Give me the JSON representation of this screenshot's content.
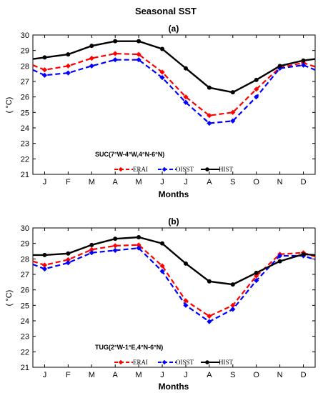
{
  "figure": {
    "title": "Seasonal SST"
  },
  "chart_data": [
    {
      "type": "line",
      "panel_label": "(a)",
      "annotation": "SUC(7°W-4°W,4°N-6°N)",
      "xlabel": "Months",
      "ylabel": "( °C)",
      "categories": [
        "J",
        "F",
        "M",
        "A",
        "M",
        "J",
        "J",
        "A",
        "S",
        "O",
        "N",
        "D"
      ],
      "ylim": [
        21,
        30
      ],
      "yticks": [
        21,
        22,
        23,
        24,
        25,
        26,
        27,
        28,
        29,
        30
      ],
      "legend": "bottom",
      "grid": false,
      "series": [
        {
          "name": "ERAI",
          "color": "#ff0000",
          "dash": true,
          "x": [
            0.5,
            1,
            2,
            3,
            4,
            5,
            6,
            7,
            8,
            9,
            10,
            11,
            12,
            12.5
          ],
          "values": [
            28.05,
            27.75,
            28.0,
            28.5,
            28.8,
            28.75,
            27.6,
            26.0,
            24.8,
            25.0,
            26.5,
            27.9,
            28.2,
            27.95
          ]
        },
        {
          "name": "OISST",
          "color": "#0000ff",
          "dash": true,
          "x": [
            0.5,
            1,
            2,
            3,
            4,
            5,
            6,
            7,
            8,
            9,
            10,
            11,
            12,
            12.5
          ],
          "values": [
            27.75,
            27.4,
            27.55,
            28.0,
            28.4,
            28.4,
            27.25,
            25.65,
            24.3,
            24.45,
            26.0,
            27.85,
            28.05,
            27.75
          ]
        },
        {
          "name": "HIST",
          "color": "#000000",
          "dash": false,
          "x": [
            0.5,
            1,
            2,
            3,
            4,
            5,
            6,
            7,
            8,
            9,
            10,
            11,
            12,
            12.5
          ],
          "values": [
            28.45,
            28.55,
            28.75,
            29.3,
            29.6,
            29.6,
            29.1,
            27.85,
            26.6,
            26.3,
            27.1,
            28.0,
            28.35,
            28.45
          ]
        }
      ]
    },
    {
      "type": "line",
      "panel_label": "(b)",
      "annotation": "TUG(2°W-1°E,4°N-6°N)",
      "xlabel": "Months",
      "ylabel": "( °C)",
      "categories": [
        "J",
        "F",
        "M",
        "A",
        "M",
        "J",
        "J",
        "A",
        "S",
        "O",
        "N",
        "D"
      ],
      "ylim": [
        21,
        30
      ],
      "yticks": [
        21,
        22,
        23,
        24,
        25,
        26,
        27,
        28,
        29,
        30
      ],
      "legend": "bottom",
      "grid": false,
      "series": [
        {
          "name": "ERAI",
          "color": "#ff0000",
          "dash": true,
          "x": [
            0.5,
            1,
            2,
            3,
            4,
            5,
            6,
            7,
            8,
            9,
            10,
            11,
            12,
            12.5
          ],
          "values": [
            27.85,
            27.6,
            27.95,
            28.6,
            28.85,
            28.9,
            27.55,
            25.3,
            24.3,
            25.0,
            26.9,
            28.3,
            28.4,
            28.15
          ]
        },
        {
          "name": "OISST",
          "color": "#0000ff",
          "dash": true,
          "x": [
            0.5,
            1,
            2,
            3,
            4,
            5,
            6,
            7,
            8,
            9,
            10,
            11,
            12,
            12.5
          ],
          "values": [
            27.65,
            27.35,
            27.75,
            28.4,
            28.55,
            28.7,
            27.2,
            25.0,
            23.95,
            24.75,
            26.6,
            28.2,
            28.2,
            27.95
          ]
        },
        {
          "name": "HIST",
          "color": "#000000",
          "dash": false,
          "x": [
            0.5,
            1,
            2,
            3,
            4,
            5,
            6,
            7,
            8,
            9,
            10,
            11,
            12,
            12.5
          ],
          "values": [
            28.25,
            28.25,
            28.35,
            28.9,
            29.3,
            29.4,
            29.0,
            27.7,
            26.55,
            26.35,
            27.1,
            27.85,
            28.3,
            28.25
          ]
        }
      ]
    }
  ]
}
